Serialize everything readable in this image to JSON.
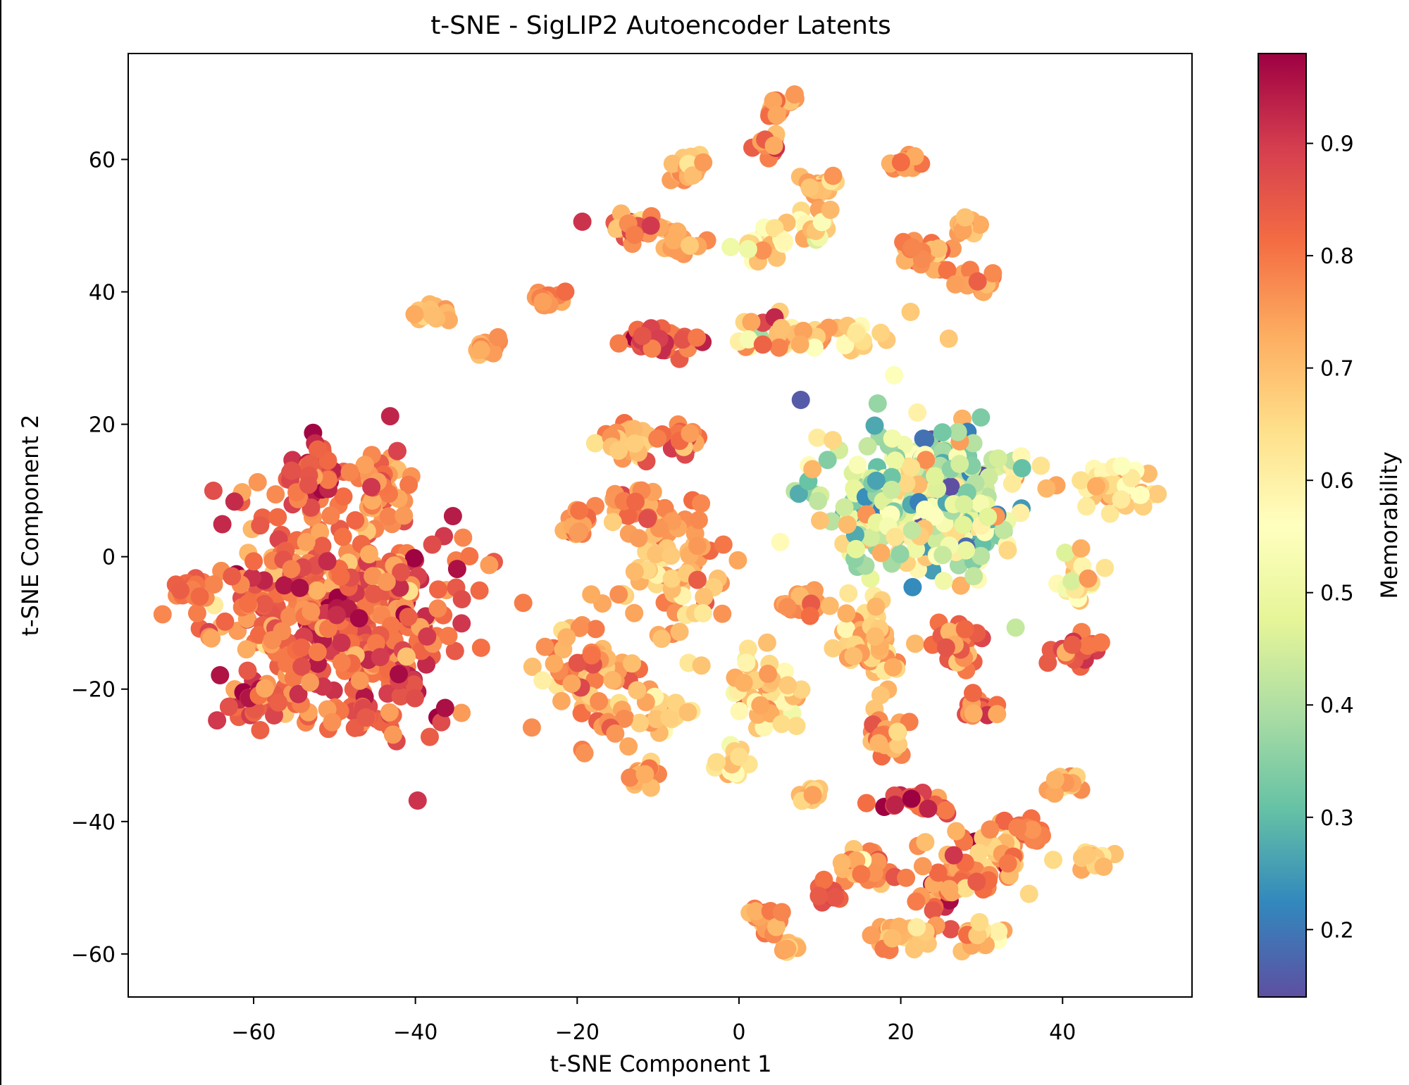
{
  "chart_data": {
    "type": "scatter",
    "title": "t-SNE - SigLIP2 Autoencoder Latents",
    "xlabel": "t-SNE Component 1",
    "ylabel": "t-SNE Component 2",
    "xlim": [
      -75.5,
      56
    ],
    "ylim": [
      -66.5,
      76
    ],
    "xticks": [
      -60,
      -40,
      -20,
      0,
      20,
      40
    ],
    "yticks": [
      -60,
      -40,
      -20,
      0,
      20,
      40,
      60
    ],
    "xtick_labels": [
      "−60",
      "−40",
      "−20",
      "0",
      "20",
      "40"
    ],
    "ytick_labels": [
      "−60",
      "−40",
      "−20",
      "0",
      "20",
      "40",
      "60"
    ],
    "grid": false,
    "colorbar": {
      "label": "Memorability",
      "colormap": "Spectral_r",
      "range": [
        0.14,
        0.98
      ],
      "ticks": [
        0.2,
        0.3,
        0.4,
        0.5,
        0.6,
        0.7,
        0.8,
        0.9
      ],
      "tick_labels": [
        "0.2",
        "0.3",
        "0.4",
        "0.5",
        "0.6",
        "0.7",
        "0.8",
        "0.9"
      ],
      "colors": [
        "#5e4fa2",
        "#3288bd",
        "#66c2a5",
        "#abdda4",
        "#e6f598",
        "#ffffbf",
        "#fee08b",
        "#fdae61",
        "#f46d43",
        "#d53e4f",
        "#9e0142"
      ]
    },
    "clusters": [
      {
        "x": -50,
        "y": -8,
        "n": 520,
        "sx": 7.5,
        "sy": 8,
        "c": 0.82,
        "cs": 0.07
      },
      {
        "x": -53,
        "y": 13,
        "n": 45,
        "sx": 2,
        "sy": 2,
        "c": 0.85,
        "cs": 0.06
      },
      {
        "x": -44,
        "y": 10,
        "n": 40,
        "sx": 2,
        "sy": 2.5,
        "c": 0.82,
        "cs": 0.06
      },
      {
        "x": -68,
        "y": -5,
        "n": 25,
        "sx": 1.2,
        "sy": 1,
        "c": 0.8,
        "cs": 0.03
      },
      {
        "x": -59,
        "y": -21,
        "n": 30,
        "sx": 1.5,
        "sy": 1.3,
        "c": 0.85,
        "cs": 0.06
      },
      {
        "x": -46,
        "y": -24,
        "n": 20,
        "sx": 1.2,
        "sy": 1.2,
        "c": 0.85,
        "cs": 0.05
      },
      {
        "x": -38,
        "y": 37,
        "n": 15,
        "sx": 1,
        "sy": 0.8,
        "c": 0.72,
        "cs": 0.03
      },
      {
        "x": -31,
        "y": 31.5,
        "n": 15,
        "sx": 1,
        "sy": 0.7,
        "c": 0.75,
        "cs": 0.03
      },
      {
        "x": -24,
        "y": 39,
        "n": 15,
        "sx": 1,
        "sy": 0.8,
        "c": 0.78,
        "cs": 0.03
      },
      {
        "x": -14,
        "y": 50,
        "n": 35,
        "sx": 2.5,
        "sy": 1,
        "c": 0.78,
        "cs": 0.08
      },
      {
        "x": -7.5,
        "y": 47,
        "n": 20,
        "sx": 1.5,
        "sy": 1,
        "c": 0.73,
        "cs": 0.04
      },
      {
        "x": -6,
        "y": 59,
        "n": 20,
        "sx": 1.3,
        "sy": 0.9,
        "c": 0.72,
        "cs": 0.04
      },
      {
        "x": 5,
        "y": 68,
        "n": 20,
        "sx": 1.2,
        "sy": 1,
        "c": 0.75,
        "cs": 0.04
      },
      {
        "x": 4,
        "y": 62,
        "n": 12,
        "sx": 1,
        "sy": 1.2,
        "c": 0.77,
        "cs": 0.06
      },
      {
        "x": 10,
        "y": 56,
        "n": 18,
        "sx": 1,
        "sy": 1,
        "c": 0.7,
        "cs": 0.05
      },
      {
        "x": 9,
        "y": 50,
        "n": 20,
        "sx": 1.3,
        "sy": 1.5,
        "c": 0.62,
        "cs": 0.1
      },
      {
        "x": 3,
        "y": 47,
        "n": 18,
        "sx": 1.5,
        "sy": 1.3,
        "c": 0.62,
        "cs": 0.08
      },
      {
        "x": 21,
        "y": 59.5,
        "n": 15,
        "sx": 1,
        "sy": 0.6,
        "c": 0.76,
        "cs": 0.04
      },
      {
        "x": 23,
        "y": 46,
        "n": 25,
        "sx": 1.5,
        "sy": 1.5,
        "c": 0.78,
        "cs": 0.05
      },
      {
        "x": 28,
        "y": 50,
        "n": 15,
        "sx": 1,
        "sy": 0.7,
        "c": 0.72,
        "cs": 0.04
      },
      {
        "x": 29,
        "y": 41.5,
        "n": 15,
        "sx": 1.2,
        "sy": 0.8,
        "c": 0.78,
        "cs": 0.04
      },
      {
        "x": -10,
        "y": 33,
        "n": 45,
        "sx": 2.5,
        "sy": 1.3,
        "c": 0.86,
        "cs": 0.06
      },
      {
        "x": 9,
        "y": 33.5,
        "n": 55,
        "sx": 5,
        "sy": 1.5,
        "c": 0.68,
        "cs": 0.1
      },
      {
        "x": -14,
        "y": 17,
        "n": 35,
        "sx": 1.5,
        "sy": 1.8,
        "c": 0.75,
        "cs": 0.05
      },
      {
        "x": -7,
        "y": 18,
        "n": 20,
        "sx": 1.2,
        "sy": 1,
        "c": 0.8,
        "cs": 0.06
      },
      {
        "x": -20,
        "y": 5,
        "n": 20,
        "sx": 1.3,
        "sy": 1,
        "c": 0.78,
        "cs": 0.05
      },
      {
        "x": -13,
        "y": 7,
        "n": 35,
        "sx": 3,
        "sy": 1.5,
        "c": 0.78,
        "cs": 0.05
      },
      {
        "x": -7,
        "y": -3,
        "n": 70,
        "sx": 3.5,
        "sy": 5,
        "c": 0.74,
        "cs": 0.07
      },
      {
        "x": -18,
        "y": -18,
        "n": 70,
        "sx": 3.5,
        "sy": 5,
        "c": 0.74,
        "cs": 0.07
      },
      {
        "x": -9,
        "y": -24,
        "n": 25,
        "sx": 2,
        "sy": 1.5,
        "c": 0.68,
        "cs": 0.05
      },
      {
        "x": -12,
        "y": -33,
        "n": 15,
        "sx": 1,
        "sy": 1,
        "c": 0.73,
        "cs": 0.04
      },
      {
        "x": -1,
        "y": -31,
        "n": 15,
        "sx": 1,
        "sy": 1,
        "c": 0.65,
        "cs": 0.05
      },
      {
        "x": 4,
        "y": -20,
        "n": 45,
        "sx": 2.5,
        "sy": 3,
        "c": 0.67,
        "cs": 0.07
      },
      {
        "x": 8,
        "y": -7,
        "n": 25,
        "sx": 1.2,
        "sy": 0.8,
        "c": 0.75,
        "cs": 0.04
      },
      {
        "x": 23,
        "y": 8,
        "n": 400,
        "sx": 6,
        "sy": 5.5,
        "c": 0.45,
        "cs": 0.14
      },
      {
        "x": 16,
        "y": -13,
        "n": 55,
        "sx": 2,
        "sy": 3,
        "c": 0.7,
        "cs": 0.06
      },
      {
        "x": 27,
        "y": -13,
        "n": 30,
        "sx": 1.5,
        "sy": 2,
        "c": 0.82,
        "cs": 0.06
      },
      {
        "x": 29,
        "y": -23,
        "n": 20,
        "sx": 1.2,
        "sy": 1,
        "c": 0.82,
        "cs": 0.05
      },
      {
        "x": 18,
        "y": -27,
        "n": 25,
        "sx": 1.2,
        "sy": 2,
        "c": 0.75,
        "cs": 0.06
      },
      {
        "x": 9,
        "y": -36,
        "n": 15,
        "sx": 1,
        "sy": 0.8,
        "c": 0.7,
        "cs": 0.04
      },
      {
        "x": 46,
        "y": 10,
        "n": 35,
        "sx": 3,
        "sy": 2,
        "c": 0.65,
        "cs": 0.07
      },
      {
        "x": 42,
        "y": -3,
        "n": 20,
        "sx": 1.5,
        "sy": 2,
        "c": 0.62,
        "cs": 0.09
      },
      {
        "x": 42,
        "y": -14,
        "n": 20,
        "sx": 1.2,
        "sy": 1.5,
        "c": 0.83,
        "cs": 0.05
      },
      {
        "x": 40,
        "y": -34,
        "n": 15,
        "sx": 1.2,
        "sy": 1,
        "c": 0.72,
        "cs": 0.04
      },
      {
        "x": 44,
        "y": -46,
        "n": 15,
        "sx": 1.5,
        "sy": 1,
        "c": 0.68,
        "cs": 0.04
      },
      {
        "x": 21,
        "y": -37,
        "n": 20,
        "sx": 2.5,
        "sy": 1.3,
        "c": 0.85,
        "cs": 0.05
      },
      {
        "x": 16,
        "y": -47,
        "n": 25,
        "sx": 2,
        "sy": 1.3,
        "c": 0.78,
        "cs": 0.05
      },
      {
        "x": 26,
        "y": -48,
        "n": 45,
        "sx": 2.5,
        "sy": 4,
        "c": 0.8,
        "cs": 0.06
      },
      {
        "x": 33,
        "y": -45,
        "n": 35,
        "sx": 2,
        "sy": 2.5,
        "c": 0.74,
        "cs": 0.07
      },
      {
        "x": 36,
        "y": -41,
        "n": 10,
        "sx": 1,
        "sy": 0.5,
        "c": 0.78,
        "cs": 0.03
      },
      {
        "x": 11,
        "y": -51,
        "n": 15,
        "sx": 1,
        "sy": 1,
        "c": 0.86,
        "cs": 0.05
      },
      {
        "x": 3,
        "y": -55,
        "n": 20,
        "sx": 1.3,
        "sy": 1,
        "c": 0.76,
        "cs": 0.04
      },
      {
        "x": 6,
        "y": -59,
        "n": 10,
        "sx": 1,
        "sy": 0.5,
        "c": 0.7,
        "cs": 0.03
      },
      {
        "x": 21,
        "y": -57,
        "n": 30,
        "sx": 2.5,
        "sy": 1,
        "c": 0.73,
        "cs": 0.05
      },
      {
        "x": 30,
        "y": -57,
        "n": 20,
        "sx": 1.5,
        "sy": 1.3,
        "c": 0.68,
        "cs": 0.06
      }
    ]
  }
}
